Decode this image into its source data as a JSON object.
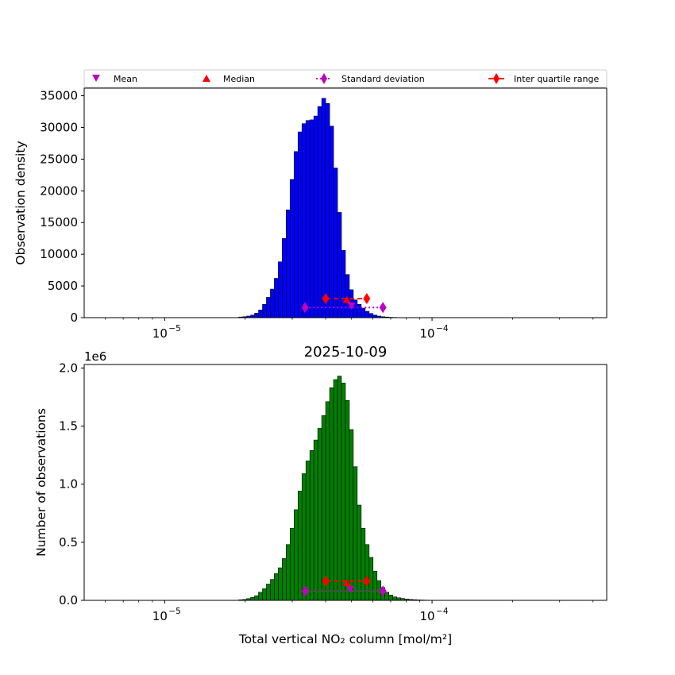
{
  "chart_data": [
    {
      "type": "bar",
      "title": "",
      "xscale": "log",
      "xlim": [
        5e-06,
        0.00045
      ],
      "ylim": [
        0,
        36200
      ],
      "xlabel": "",
      "ylabel": "Observation density",
      "bar_color": "#0000ff",
      "x_ticks": [
        {
          "value": 1e-05,
          "base": "10",
          "exp": "−5"
        },
        {
          "value": 0.0001,
          "base": "10",
          "exp": "−4"
        }
      ],
      "y_ticks": [
        0,
        5000,
        10000,
        15000,
        20000,
        25000,
        30000,
        35000
      ],
      "y_tick_labels": [
        "0",
        "5000",
        "10000",
        "15000",
        "20000",
        "25000",
        "30000",
        "35000"
      ],
      "bin_start": 1.893e-05,
      "bin_ratio": 1.0346,
      "values": [
        100,
        150,
        250,
        400,
        700,
        1200,
        2100,
        3200,
        4500,
        6200,
        8800,
        12500,
        17000,
        21800,
        26200,
        29300,
        30600,
        31100,
        31200,
        31800,
        33300,
        34600,
        33800,
        30200,
        23600,
        16600,
        10600,
        6800,
        4400,
        2800,
        2100,
        1500,
        1000,
        650,
        400,
        250,
        150,
        100,
        60,
        40,
        25,
        15,
        10,
        5
      ],
      "stats": {
        "mean": {
          "x": 5e-05,
          "y": 1900
        },
        "median": {
          "x": 4.8e-05,
          "y": 2800
        },
        "std": {
          "low": 3.35e-05,
          "high": 6.55e-05,
          "y": 1600
        },
        "iqr": {
          "low": 4e-05,
          "high": 5.7e-05,
          "y": 3000
        }
      }
    },
    {
      "type": "bar",
      "title": "2025-10-09",
      "xscale": "log",
      "xlim": [
        5e-06,
        0.00045
      ],
      "ylim": [
        0,
        2.03
      ],
      "xlabel": "Total vertical NO₂ column [mol/m²]",
      "ylabel": "Number of observations",
      "offset_text": "1e6",
      "bar_color": "#008000",
      "x_ticks": [
        {
          "value": 1e-05,
          "base": "10",
          "exp": "−5"
        },
        {
          "value": 0.0001,
          "base": "10",
          "exp": "−4"
        }
      ],
      "y_ticks": [
        0,
        0.5,
        1.0,
        1.5,
        2.0
      ],
      "y_tick_labels": [
        "0.0",
        "0.5",
        "1.0",
        "1.5",
        "2.0"
      ],
      "bin_start": 1.893e-05,
      "bin_ratio": 1.0346,
      "values": [
        0.005,
        0.008,
        0.015,
        0.025,
        0.04,
        0.07,
        0.1,
        0.14,
        0.18,
        0.23,
        0.28,
        0.36,
        0.48,
        0.62,
        0.78,
        0.94,
        1.09,
        1.2,
        1.29,
        1.38,
        1.48,
        1.59,
        1.71,
        1.83,
        1.9,
        1.93,
        1.87,
        1.72,
        1.47,
        1.15,
        0.82,
        0.62,
        0.48,
        0.37,
        0.25,
        0.17,
        0.11,
        0.07,
        0.045,
        0.03,
        0.022,
        0.016,
        0.011,
        0.008,
        0.006,
        0.004,
        0.003,
        0.002,
        0.001,
        0.001
      ],
      "stats": {
        "mean": {
          "x": 4.95e-05,
          "y": 0.095
        },
        "median": {
          "x": 4.8e-05,
          "y": 0.15
        },
        "std": {
          "low": 3.35e-05,
          "high": 6.55e-05,
          "y": 0.08
        },
        "iqr": {
          "low": 4e-05,
          "high": 5.7e-05,
          "y": 0.165
        }
      }
    }
  ],
  "legend": {
    "position": "top",
    "items": [
      {
        "label": "Mean",
        "marker": "triangle-down",
        "color": "#bf00bf"
      },
      {
        "label": "Median",
        "marker": "triangle-up",
        "color": "#ff0000"
      },
      {
        "label": "Standard deviation",
        "marker": "diamond-dotted-line",
        "color": "#bf00bf"
      },
      {
        "label": "Inter quartile range",
        "marker": "diamond-line",
        "color": "#ff0000"
      }
    ]
  }
}
